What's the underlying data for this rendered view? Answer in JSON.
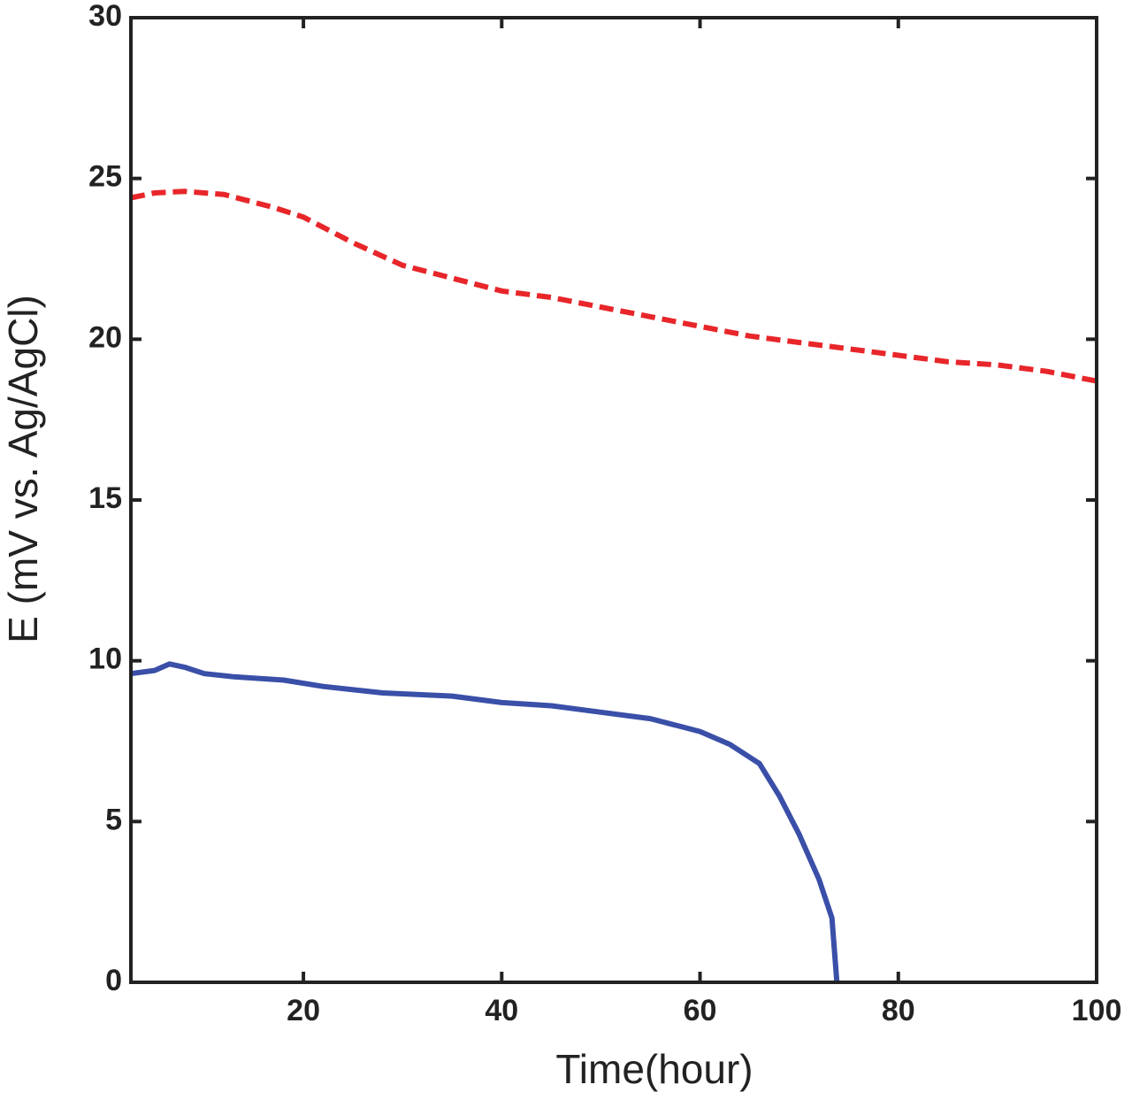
{
  "chart_data": {
    "type": "line",
    "x_label": "Time(hour)",
    "y_label": "E (mV vs. Ag/AgCl)",
    "xlim": [
      2.6,
      100
    ],
    "ylim": [
      0,
      30
    ],
    "xticks": [
      20,
      40,
      60,
      80,
      100
    ],
    "yticks": [
      0,
      5,
      10,
      15,
      20,
      25,
      30
    ],
    "grid": false,
    "series": [
      {
        "color": "#e8262a",
        "linestyle": "dashed",
        "x": [
          2.6,
          5,
          8,
          12,
          17,
          20,
          25,
          30,
          35,
          40,
          45,
          50,
          55,
          60,
          65,
          70,
          75,
          80,
          85,
          90,
          95,
          100
        ],
        "values": [
          24.4,
          24.55,
          24.6,
          24.5,
          24.1,
          23.8,
          23.0,
          22.3,
          21.9,
          21.5,
          21.3,
          21.0,
          20.7,
          20.4,
          20.1,
          19.9,
          19.7,
          19.5,
          19.3,
          19.2,
          19.0,
          18.7
        ]
      },
      {
        "color": "#3a4fa8",
        "linestyle": "solid",
        "x": [
          2.6,
          5,
          6.5,
          8,
          10,
          13,
          18,
          22,
          28,
          35,
          40,
          45,
          50,
          55,
          60,
          63,
          66,
          68,
          70,
          72,
          73.3,
          73.8
        ],
        "values": [
          9.6,
          9.7,
          9.9,
          9.8,
          9.6,
          9.5,
          9.4,
          9.2,
          9.0,
          8.9,
          8.7,
          8.6,
          8.4,
          8.2,
          7.8,
          7.4,
          6.8,
          5.8,
          4.6,
          3.2,
          2.0,
          0
        ]
      }
    ]
  }
}
